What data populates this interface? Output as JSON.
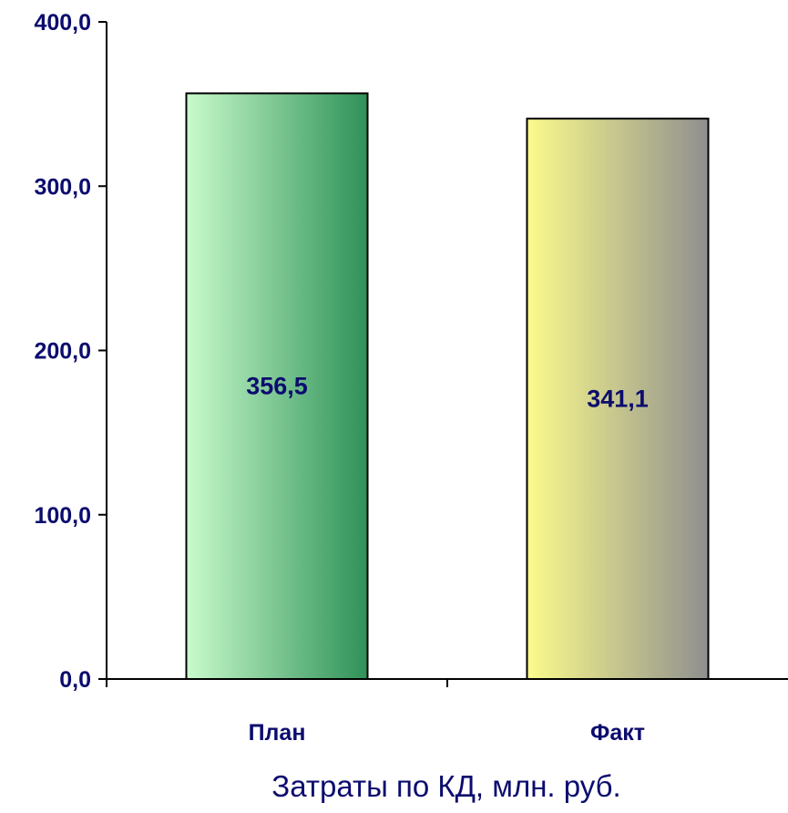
{
  "chart_data": {
    "type": "bar",
    "categories": [
      "План",
      "Факт"
    ],
    "values": [
      356.5,
      341.1
    ],
    "value_labels": [
      "356,5",
      "341,1"
    ],
    "xlabel": "Затраты по КД, млн. руб.",
    "ylabel": "",
    "ylim": [
      0,
      400
    ],
    "yticks": [
      0,
      100,
      200,
      300,
      400
    ],
    "ytick_labels": [
      "0,0",
      "100,0",
      "200,0",
      "300,0",
      "400,0"
    ],
    "grid": false,
    "legend": "none",
    "colors": {
      "text": "#0c0c6e",
      "axis": "#000000",
      "bar_outline": "#000000",
      "bar_gradients": [
        [
          "#c9fbcc",
          "#2e9158"
        ],
        [
          "#fbfb8c",
          "#8f8f8f"
        ]
      ]
    }
  }
}
